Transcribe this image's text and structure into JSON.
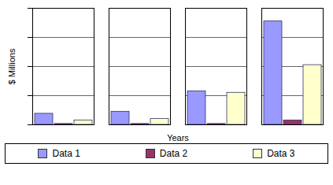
{
  "chart_data": {
    "type": "bar",
    "x_label": "Years",
    "y_label": "$ Millions",
    "categories": [
      null,
      null,
      null,
      null
    ],
    "series": [
      {
        "name": "Data 1",
        "color": "#9999ff",
        "values": [
          0.38,
          0.45,
          1.15,
          3.55
        ]
      },
      {
        "name": "Data 2",
        "color": "#993366",
        "values": [
          0.03,
          0.03,
          0.03,
          0.15
        ]
      },
      {
        "name": "Data 3",
        "color": "#ffffcc",
        "values": [
          0.15,
          0.2,
          1.1,
          2.05
        ]
      }
    ],
    "ylim": [
      0,
      4
    ],
    "yticks": [
      0,
      1,
      2,
      3,
      4
    ],
    "grid": true,
    "tick_labels": false,
    "legend": "bottom"
  }
}
